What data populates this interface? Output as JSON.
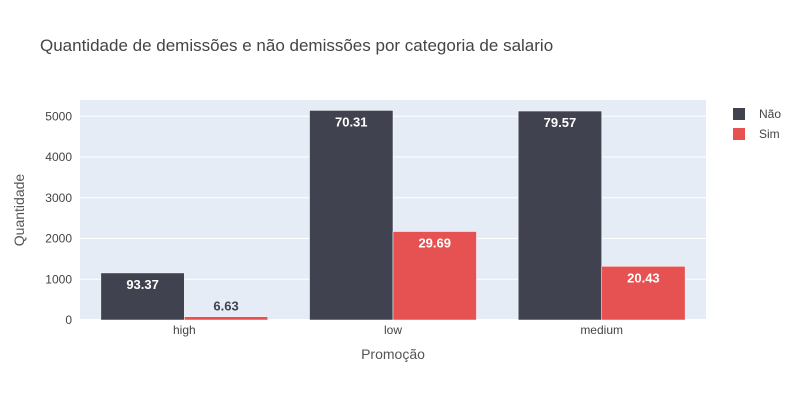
{
  "chart_data": {
    "type": "bar",
    "title": "Quantidade de demissões e não demissões por categoria de salario",
    "xlabel": "Promoção",
    "ylabel": "Quantidade",
    "categories": [
      "high",
      "low",
      "medium"
    ],
    "ylim": [
      0,
      5400
    ],
    "yticks": [
      0,
      1000,
      2000,
      3000,
      4000,
      5000
    ],
    "grid": true,
    "legend_position": "top-right",
    "series": [
      {
        "name": "Não",
        "color": "#41424f",
        "values": [
          1155,
          5144,
          5129
        ],
        "labels": [
          "93.37",
          "70.31",
          "79.57"
        ]
      },
      {
        "name": "Sim",
        "color": "#e65151",
        "values": [
          82,
          2172,
          1317
        ],
        "labels": [
          "6.63",
          "29.69",
          "20.43"
        ]
      }
    ]
  }
}
